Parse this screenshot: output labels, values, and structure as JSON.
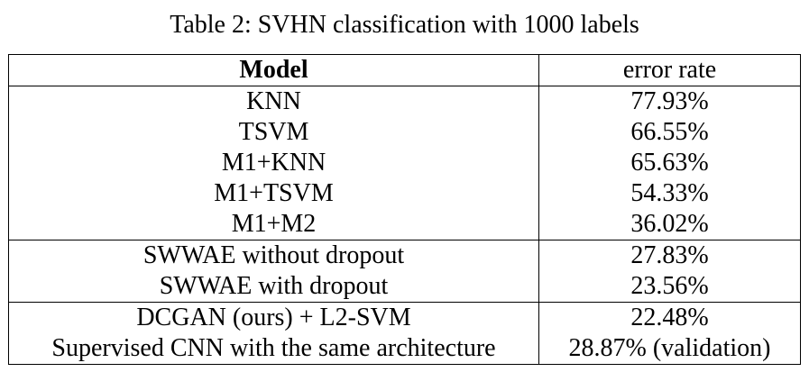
{
  "caption": "Table 2: SVHN classification with 1000 labels",
  "table": {
    "headers": {
      "model": "Model",
      "error_rate": "error rate"
    },
    "groups": [
      [
        {
          "model": "KNN",
          "error": "77.93%"
        },
        {
          "model": "TSVM",
          "error": "66.55%"
        },
        {
          "model": "M1+KNN",
          "error": "65.63%"
        },
        {
          "model": "M1+TSVM",
          "error": "54.33%"
        },
        {
          "model": "M1+M2",
          "error": "36.02%"
        }
      ],
      [
        {
          "model": "SWWAE without dropout",
          "error": "27.83%"
        },
        {
          "model": "SWWAE with dropout",
          "error": "23.56%"
        }
      ],
      [
        {
          "model": "DCGAN (ours) + L2-SVM",
          "error": "22.48%"
        },
        {
          "model": "Supervised CNN with the same architecture",
          "error": "28.87% (validation)"
        }
      ]
    ]
  }
}
